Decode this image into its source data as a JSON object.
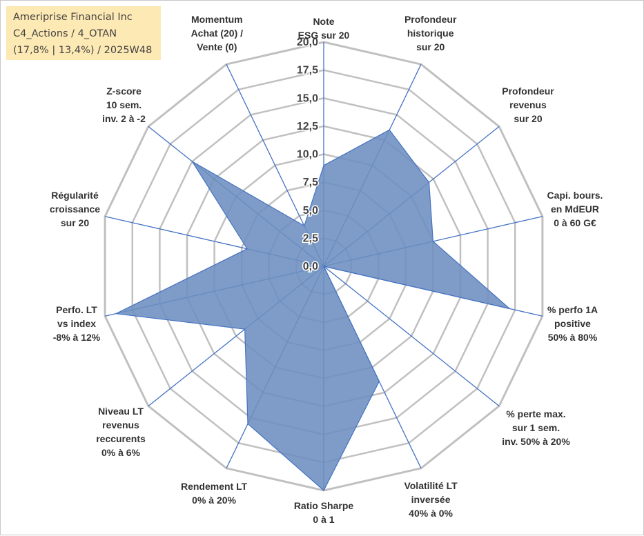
{
  "info_box": {
    "line1": "Ameriprise Financial Inc",
    "line2": "C4_Actions / 4_OTAN",
    "line3": "(17,8% | 13,4%) / 2025W48"
  },
  "colors": {
    "grid": "#c0c0c0",
    "axis": "#4472c4",
    "fill": "#6c8ebf",
    "text": "#333333",
    "box_bg": "#fde9b3"
  },
  "chart_data": {
    "type": "radar",
    "rmin": 0,
    "rmax": 20,
    "tick_step": 2.5,
    "tick_labels": [
      "0,0",
      "2,5",
      "5,0",
      "7,5",
      "10,0",
      "12,5",
      "15,0",
      "17,5",
      "20,0"
    ],
    "axes": [
      {
        "label": [
          "Note",
          "ESG sur 20"
        ],
        "value": 9
      },
      {
        "label": [
          "Profondeur",
          "historique",
          "sur 20"
        ],
        "value": 13.5
      },
      {
        "label": [
          "Profondeur",
          "revenus",
          "sur 20"
        ],
        "value": 12
      },
      {
        "label": [
          "Capi. bours.",
          "en MdEUR",
          "0 à 60 G€"
        ],
        "value": 10
      },
      {
        "label": [
          "% perfo 1A",
          "positive",
          "50% à 80%"
        ],
        "value": 17
      },
      {
        "label": [
          "% perte max.",
          "sur 1 sem.",
          "inv. 50% à 20%"
        ],
        "value": 0
      },
      {
        "label": [
          "Volatilité LT",
          "inversée",
          "40% à 0%"
        ],
        "value": 11.4
      },
      {
        "label": [
          "Ratio Sharpe",
          "0 à 1"
        ],
        "value": 20
      },
      {
        "label": [
          "Rendement LT",
          "0% à 20%"
        ],
        "value": 15.6
      },
      {
        "label": [
          "Niveau LT",
          "revenus",
          "reccurents",
          "0% à 6%"
        ],
        "value": 9
      },
      {
        "label": [
          "Perfo. LT",
          "vs index",
          "-8% à 12%"
        ],
        "value": 19
      },
      {
        "label": [
          "Régularité",
          "croissance",
          "sur 20"
        ],
        "value": 7
      },
      {
        "label": [
          "Z-score",
          "10 sem.",
          "inv. 2 à -2"
        ],
        "value": 15
      },
      {
        "label": [
          "Momentum",
          "Achat (20) /",
          "Vente (0)"
        ],
        "value": 4
      }
    ]
  }
}
